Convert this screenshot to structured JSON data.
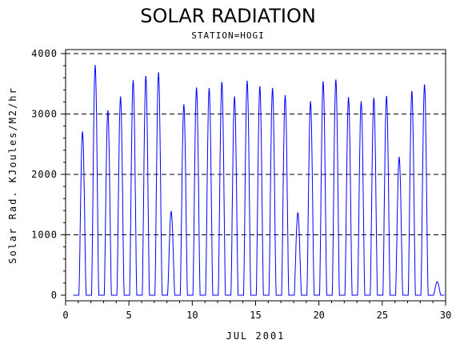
{
  "chart_data": {
    "type": "line",
    "title": "SOLAR RADIATION",
    "subtitle": "STATION=HOGI",
    "xlabel": "JUL 2001",
    "ylabel": "Solar Rad. KJoules/M2/hr",
    "xlim": [
      0,
      30
    ],
    "ylim": [
      0,
      4000
    ],
    "x_ticks": [
      0,
      5,
      10,
      15,
      20,
      25,
      30
    ],
    "x_tick_labels": [
      "0",
      "5",
      "10",
      "15",
      "20",
      "25",
      "30"
    ],
    "y_ticks": [
      0,
      1000,
      2000,
      3000,
      4000
    ],
    "y_tick_labels": [
      "0",
      "1000",
      "2000",
      "3000",
      "4000"
    ],
    "grid": "horizontal dashed",
    "series": [
      {
        "color": "#0000ff",
        "daily_peaks": [
          {
            "day": 1,
            "peak": 2700
          },
          {
            "day": 2,
            "peak": 3800
          },
          {
            "day": 3,
            "peak": 3050
          },
          {
            "day": 4,
            "peak": 3280
          },
          {
            "day": 5,
            "peak": 3550
          },
          {
            "day": 6,
            "peak": 3620
          },
          {
            "day": 7,
            "peak": 3680
          },
          {
            "day": 8,
            "peak": 1380
          },
          {
            "day": 9,
            "peak": 3150
          },
          {
            "day": 10,
            "peak": 3430
          },
          {
            "day": 11,
            "peak": 3420
          },
          {
            "day": 12,
            "peak": 3520
          },
          {
            "day": 13,
            "peak": 3280
          },
          {
            "day": 14,
            "peak": 3540
          },
          {
            "day": 15,
            "peak": 3450
          },
          {
            "day": 16,
            "peak": 3420
          },
          {
            "day": 17,
            "peak": 3300
          },
          {
            "day": 18,
            "peak": 1360
          },
          {
            "day": 19,
            "peak": 3200
          },
          {
            "day": 20,
            "peak": 3530
          },
          {
            "day": 21,
            "peak": 3560
          },
          {
            "day": 22,
            "peak": 3270
          },
          {
            "day": 23,
            "peak": 3200
          },
          {
            "day": 24,
            "peak": 3260
          },
          {
            "day": 25,
            "peak": 3290
          },
          {
            "day": 26,
            "peak": 2280
          },
          {
            "day": 27,
            "peak": 3370
          },
          {
            "day": 28,
            "peak": 3480
          },
          {
            "day": 29,
            "peak": 220
          }
        ]
      }
    ]
  }
}
